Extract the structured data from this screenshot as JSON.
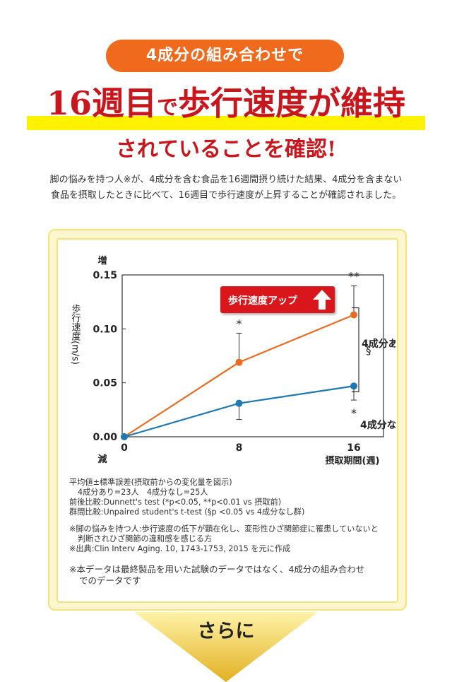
{
  "pill_label": "4成分の組み合わせで",
  "headline": {
    "part1": "16週目",
    "part2": "で",
    "part3": "歩行速度が維持"
  },
  "subhead": "されていることを確認!",
  "description": [
    "脚の悩みを持つ人※が、4成分を含む食品を16週間摂り続けた結果、4成分を含まない",
    "食品を摂取したときに比べて、16週目で歩行速度が上昇することが確認されました。"
  ],
  "chart_data": {
    "type": "line",
    "ylabel": "歩行速度(m/s)",
    "y_top_label": "増",
    "y_bottom_label": "減",
    "xlabel": "摂取期間(週)",
    "x": [
      0,
      8,
      16
    ],
    "ylim": [
      0,
      0.15
    ],
    "yticks": [
      "0.15",
      "0.10",
      "0.05",
      "0.00"
    ],
    "ytick_values": [
      0.15,
      0.1,
      0.05,
      0.0
    ],
    "xticks": [
      "0",
      "8",
      "16"
    ],
    "series": [
      {
        "name": "4成分あり",
        "color": "#ec6b20",
        "values": [
          0.0,
          0.069,
          0.113
        ],
        "errors": [
          0,
          0.027,
          0.027
        ],
        "marks": [
          "",
          "*",
          "**"
        ]
      },
      {
        "name": "4成分なし",
        "color": "#1e78b4",
        "values": [
          0.0,
          0.031,
          0.047
        ],
        "errors": [
          0,
          0.015,
          0.013
        ],
        "marks": [
          "",
          "",
          "*"
        ]
      }
    ],
    "callout": "歩行速度アップ",
    "group_mark": "§"
  },
  "notes": [
    "平均値±標準誤差(摂取前からの変化量を図示)",
    "4成分あり=23人　4成分なし=25人",
    "前後比較:Dunnett's test (*p<0.05, **p<0.01 vs 摂取前)",
    "群間比較:Unpaired student's t-test (§p <0.05 vs 4成分なし群)"
  ],
  "footnotes": [
    "※脚の悩みを持つ人:歩行速度の低下が顕在化し、変形性ひざ関節症に罹患していないと",
    "判断されひざ関節の違和感を感じる方",
    "※出典:Clin Interv Aging. 10, 1743-1753, 2015 を元に作成"
  ],
  "disclaimer": [
    "※本データは最終製品を用いた試験のデータではなく、4成分の組み合わせ",
    "でのデータです"
  ],
  "sarani": "さらに"
}
